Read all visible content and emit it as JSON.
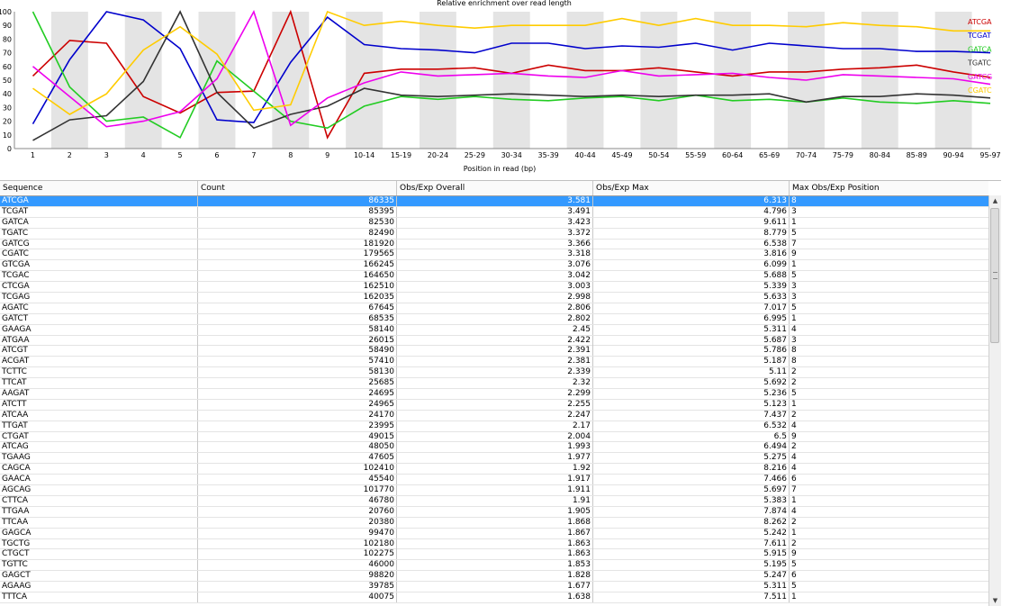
{
  "chart_data": {
    "type": "line",
    "title": "Relative enrichment over read length",
    "xlabel": "Position in read (bp)",
    "ylabel": "",
    "ylim": [
      0,
      100
    ],
    "y_ticks": [
      "0",
      "10",
      "20",
      "30",
      "40",
      "50",
      "60",
      "70",
      "80",
      "90",
      "100"
    ],
    "categories": [
      "1",
      "2",
      "3",
      "4",
      "5",
      "6",
      "7",
      "8",
      "9",
      "10-14",
      "15-19",
      "20-24",
      "25-29",
      "30-34",
      "35-39",
      "40-44",
      "45-49",
      "50-54",
      "55-59",
      "60-64",
      "65-69",
      "70-74",
      "75-79",
      "80-84",
      "85-89",
      "90-94",
      "95-97"
    ],
    "legend_position": "right",
    "series": [
      {
        "name": "ATCGA",
        "color": "#cc0000",
        "values": [
          53,
          79,
          77,
          38,
          26,
          41,
          42,
          100,
          8,
          55,
          58,
          58,
          59,
          55,
          61,
          57,
          57,
          59,
          56,
          53,
          56,
          56,
          58,
          59,
          61,
          56,
          52
        ]
      },
      {
        "name": "TCGAT",
        "color": "#0000cc",
        "values": [
          18,
          65,
          100,
          94,
          73,
          21,
          19,
          63,
          96,
          76,
          73,
          72,
          70,
          77,
          77,
          73,
          75,
          74,
          77,
          72,
          77,
          75,
          73,
          73,
          71,
          71,
          70
        ]
      },
      {
        "name": "GATCA",
        "color": "#22cc22",
        "values": [
          100,
          45,
          20,
          23,
          8,
          64,
          42,
          20,
          15,
          31,
          38,
          36,
          38,
          36,
          35,
          37,
          38,
          35,
          39,
          35,
          36,
          34,
          37,
          34,
          33,
          35,
          33
        ]
      },
      {
        "name": "TGATC",
        "color": "#333333",
        "values": [
          6,
          21,
          24,
          49,
          100,
          41,
          15,
          25,
          31,
          44,
          39,
          38,
          39,
          40,
          39,
          38,
          39,
          38,
          39,
          39,
          40,
          34,
          38,
          38,
          40,
          39,
          37
        ]
      },
      {
        "name": "GATCG",
        "color": "#ee00ee",
        "values": [
          60,
          38,
          16,
          20,
          27,
          51,
          100,
          17,
          37,
          48,
          56,
          53,
          54,
          55,
          53,
          52,
          57,
          53,
          54,
          55,
          52,
          50,
          54,
          53,
          52,
          51,
          47
        ]
      },
      {
        "name": "CGATC",
        "color": "#ffcc00",
        "values": [
          44,
          25,
          40,
          72,
          89,
          69,
          28,
          32,
          100,
          90,
          93,
          90,
          88,
          90,
          90,
          90,
          95,
          90,
          95,
          90,
          90,
          89,
          92,
          90,
          89,
          86,
          86
        ]
      }
    ]
  },
  "table": {
    "headers": [
      "Sequence",
      "Count",
      "Obs/Exp Overall",
      "Obs/Exp Max",
      "Max Obs/Exp Position"
    ],
    "selected_index": 0,
    "rows": [
      [
        "ATCGA",
        "86335",
        "3.581",
        "6.313",
        "8"
      ],
      [
        "TCGAT",
        "85395",
        "3.491",
        "4.796",
        "3"
      ],
      [
        "GATCA",
        "82530",
        "3.423",
        "9.611",
        "1"
      ],
      [
        "TGATC",
        "82490",
        "3.372",
        "8.779",
        "5"
      ],
      [
        "GATCG",
        "181920",
        "3.366",
        "6.538",
        "7"
      ],
      [
        "CGATC",
        "179565",
        "3.318",
        "3.816",
        "9"
      ],
      [
        "GTCGA",
        "166245",
        "3.076",
        "6.099",
        "1"
      ],
      [
        "TCGAC",
        "164650",
        "3.042",
        "5.688",
        "5"
      ],
      [
        "CTCGA",
        "162510",
        "3.003",
        "5.339",
        "3"
      ],
      [
        "TCGAG",
        "162035",
        "2.998",
        "5.633",
        "3"
      ],
      [
        "AGATC",
        "67645",
        "2.806",
        "7.017",
        "5"
      ],
      [
        "GATCT",
        "68535",
        "2.802",
        "6.995",
        "1"
      ],
      [
        "GAAGA",
        "58140",
        "2.45",
        "5.311",
        "4"
      ],
      [
        "ATGAA",
        "26015",
        "2.422",
        "5.687",
        "3"
      ],
      [
        "ATCGT",
        "58490",
        "2.391",
        "5.786",
        "8"
      ],
      [
        "ACGAT",
        "57410",
        "2.381",
        "5.187",
        "8"
      ],
      [
        "TCTTC",
        "58130",
        "2.339",
        "5.11",
        "2"
      ],
      [
        "TTCAT",
        "25685",
        "2.32",
        "5.692",
        "2"
      ],
      [
        "AAGAT",
        "24695",
        "2.299",
        "5.236",
        "5"
      ],
      [
        "ATCTT",
        "24965",
        "2.255",
        "5.123",
        "1"
      ],
      [
        "ATCAA",
        "24170",
        "2.247",
        "7.437",
        "2"
      ],
      [
        "TTGAT",
        "23995",
        "2.17",
        "6.532",
        "4"
      ],
      [
        "CTGAT",
        "49015",
        "2.004",
        "6.5",
        "9"
      ],
      [
        "ATCAG",
        "48050",
        "1.993",
        "6.494",
        "2"
      ],
      [
        "TGAAG",
        "47605",
        "1.977",
        "5.275",
        "4"
      ],
      [
        "CAGCA",
        "102410",
        "1.92",
        "8.216",
        "4"
      ],
      [
        "GAACA",
        "45540",
        "1.917",
        "7.466",
        "6"
      ],
      [
        "AGCAG",
        "101770",
        "1.911",
        "5.697",
        "7"
      ],
      [
        "CTTCA",
        "46780",
        "1.91",
        "5.383",
        "1"
      ],
      [
        "TTGAA",
        "20760",
        "1.905",
        "7.874",
        "4"
      ],
      [
        "TTCAA",
        "20380",
        "1.868",
        "8.262",
        "2"
      ],
      [
        "GAGCA",
        "99470",
        "1.867",
        "5.242",
        "1"
      ],
      [
        "TGCTG",
        "102180",
        "1.863",
        "7.611",
        "2"
      ],
      [
        "CTGCT",
        "102275",
        "1.863",
        "5.915",
        "9"
      ],
      [
        "TGTTC",
        "46000",
        "1.853",
        "5.195",
        "5"
      ],
      [
        "GAGCT",
        "98820",
        "1.828",
        "5.247",
        "6"
      ],
      [
        "AGAAG",
        "39785",
        "1.677",
        "5.311",
        "5"
      ],
      [
        "TTTCA",
        "40075",
        "1.638",
        "7.511",
        "1"
      ]
    ]
  }
}
